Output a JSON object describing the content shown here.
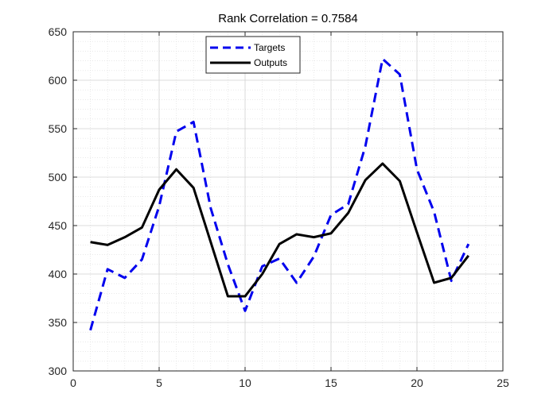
{
  "chart_data": {
    "type": "line",
    "title": "Rank Correlation = 0.7584",
    "xlabel": "",
    "ylabel": "",
    "xlim": [
      0,
      25
    ],
    "ylim": [
      300,
      650
    ],
    "xticks": [
      0,
      5,
      10,
      15,
      20,
      25
    ],
    "yticks": [
      300,
      350,
      400,
      450,
      500,
      550,
      600,
      650
    ],
    "grid": true,
    "minor_grid": true,
    "legend_position": "top-center",
    "x": [
      1,
      2,
      3,
      4,
      5,
      6,
      7,
      8,
      9,
      10,
      11,
      12,
      13,
      14,
      15,
      16,
      17,
      18,
      19,
      20,
      21,
      22,
      23
    ],
    "series": [
      {
        "name": "Targets",
        "color": "#0000ee",
        "style": "dashed",
        "values": [
          342,
          405,
          396,
          415,
          470,
          547,
          557,
          468,
          410,
          362,
          408,
          416,
          391,
          418,
          461,
          472,
          532,
          622,
          606,
          508,
          464,
          393,
          431
        ]
      },
      {
        "name": "Outputs",
        "color": "#000000",
        "style": "solid",
        "values": [
          433,
          430,
          438,
          448,
          487,
          508,
          489,
          433,
          377,
          377,
          400,
          431,
          441,
          438,
          442,
          463,
          497,
          514,
          496,
          443,
          391,
          396,
          419
        ]
      }
    ]
  }
}
